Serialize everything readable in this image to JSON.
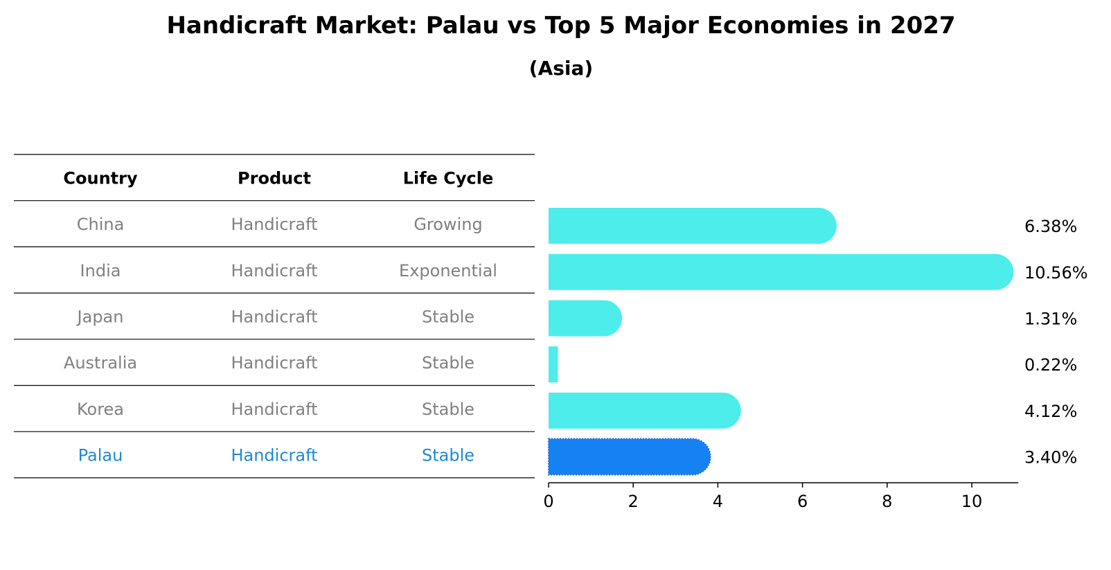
{
  "title": "Handicraft Market: Palau vs Top 5 Major Economies in 2027",
  "subtitle": "(Asia)",
  "table": {
    "headers": [
      "Country",
      "Product",
      "Life Cycle"
    ],
    "rows": [
      {
        "country": "China",
        "product": "Handicraft",
        "life_cycle": "Growing"
      },
      {
        "country": "India",
        "product": "Handicraft",
        "life_cycle": "Exponential"
      },
      {
        "country": "Japan",
        "product": "Handicraft",
        "life_cycle": "Stable"
      },
      {
        "country": "Australia",
        "product": "Handicraft",
        "life_cycle": "Stable"
      },
      {
        "country": "Korea",
        "product": "Handicraft",
        "life_cycle": "Stable"
      },
      {
        "country": "Palau",
        "product": "Handicraft",
        "life_cycle": "Stable"
      }
    ]
  },
  "colors": {
    "bar": "#4DEDEB",
    "highlight_bar": "#1681F2",
    "highlight_text": "#1E88D6",
    "row_text": "#808080",
    "header_text": "#000000",
    "rule": "#000000"
  },
  "chart_data": {
    "type": "bar",
    "orientation": "horizontal",
    "categories": [
      "China",
      "India",
      "Japan",
      "Australia",
      "Korea",
      "Palau"
    ],
    "values": [
      6.38,
      10.56,
      1.31,
      0.22,
      4.12,
      3.4
    ],
    "value_labels": [
      "6.38%",
      "10.56%",
      "1.31%",
      "0.22%",
      "4.12%",
      "3.40%"
    ],
    "highlight": "Palau",
    "xlim": [
      0,
      11.1
    ],
    "xticks": [
      0,
      2,
      4,
      6,
      8,
      10
    ],
    "title": "Handicraft Market: Palau vs Top 5 Major Economies in 2027",
    "subtitle": "(Asia)",
    "xlabel": "",
    "ylabel": ""
  }
}
